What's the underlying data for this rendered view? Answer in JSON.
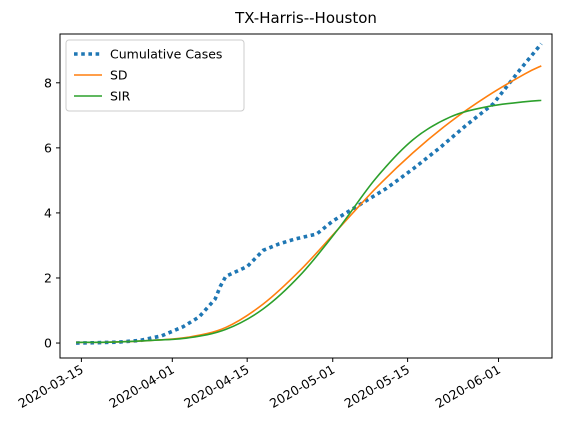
{
  "chart_data": {
    "type": "line",
    "title": "TX-Harris--Houston",
    "xlabel": "",
    "ylabel": "",
    "x_type": "date",
    "xlim": [
      "2020-03-11",
      "2020-06-11"
    ],
    "ylim": [
      -0.46,
      9.5
    ],
    "x_ticks": [
      "2020-03-15",
      "2020-04-01",
      "2020-04-15",
      "2020-05-01",
      "2020-05-15",
      "2020-06-01"
    ],
    "y_ticks": [
      0,
      2,
      4,
      6,
      8
    ],
    "grid": false,
    "legend": {
      "placement": "top-left"
    },
    "series": [
      {
        "name": "Cumulative Cases",
        "style": "dotted",
        "color": "#1f77b4",
        "x": [
          "2020-03-14",
          "2020-03-18",
          "2020-03-22",
          "2020-03-26",
          "2020-03-30",
          "2020-04-03",
          "2020-04-06",
          "2020-04-09",
          "2020-04-10",
          "2020-04-11",
          "2020-04-15",
          "2020-04-18",
          "2020-04-21",
          "2020-04-24",
          "2020-04-28",
          "2020-05-01",
          "2020-05-06",
          "2020-05-11",
          "2020-05-16",
          "2020-05-21",
          "2020-05-26",
          "2020-05-31",
          "2020-06-05",
          "2020-06-09"
        ],
        "y": [
          0.0,
          0.01,
          0.03,
          0.08,
          0.22,
          0.5,
          0.8,
          1.35,
          1.75,
          2.05,
          2.35,
          2.85,
          3.05,
          3.2,
          3.35,
          3.75,
          4.25,
          4.75,
          5.35,
          6.0,
          6.7,
          7.35,
          8.4,
          9.2
        ]
      },
      {
        "name": "SD",
        "style": "solid",
        "color": "#ff7f0e",
        "x": [
          "2020-03-14",
          "2020-03-21",
          "2020-03-28",
          "2020-04-04",
          "2020-04-11",
          "2020-04-18",
          "2020-04-25",
          "2020-05-02",
          "2020-05-09",
          "2020-05-16",
          "2020-05-23",
          "2020-05-30",
          "2020-06-06",
          "2020-06-09"
        ],
        "y": [
          0.02,
          0.03,
          0.08,
          0.18,
          0.48,
          1.2,
          2.25,
          3.5,
          4.75,
          5.85,
          6.8,
          7.6,
          8.28,
          8.52
        ]
      },
      {
        "name": "SIR",
        "style": "solid",
        "color": "#2ca02c",
        "x": [
          "2020-03-14",
          "2020-03-21",
          "2020-03-28",
          "2020-04-04",
          "2020-04-11",
          "2020-04-18",
          "2020-04-25",
          "2020-05-02",
          "2020-05-09",
          "2020-05-16",
          "2020-05-23",
          "2020-05-30",
          "2020-06-06",
          "2020-06-09"
        ],
        "y": [
          0.02,
          0.03,
          0.08,
          0.16,
          0.42,
          1.05,
          2.1,
          3.5,
          5.05,
          6.25,
          6.95,
          7.27,
          7.42,
          7.46
        ]
      }
    ]
  }
}
